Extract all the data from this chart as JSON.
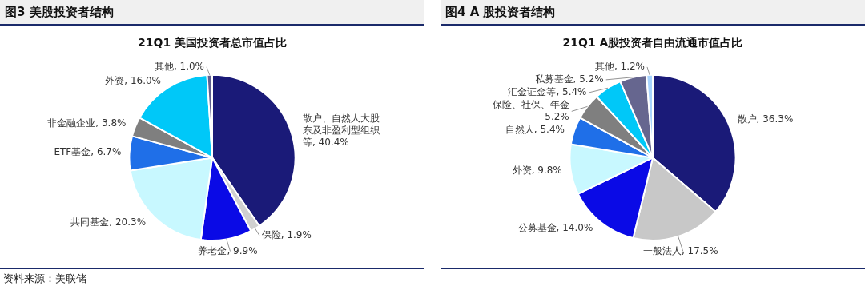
{
  "chart_data": [
    {
      "type": "pie",
      "title": "图3  美股投资者结构",
      "subtitle": "21Q1 美国投资者总市值占比",
      "categories": [
        "散户、自然人大股东及非盈利型组织等",
        "保险",
        "养老金",
        "共同基金",
        "ETF基金",
        "非金融企业",
        "外资",
        "其他"
      ],
      "values": [
        40.4,
        1.9,
        9.9,
        20.3,
        6.7,
        3.8,
        16.0,
        1.0
      ],
      "value_labels": [
        "40.4%",
        "1.9%",
        "9.9%",
        "20.3%",
        "6.7%",
        "3.8%",
        "16.0%",
        "1.0%"
      ],
      "colors": [
        "#1a1a78",
        "#d0d0d0",
        "#0a0ae6",
        "#c8f8ff",
        "#1f6fe8",
        "#7f7f7f",
        "#00c8f8",
        "#5f5f8f"
      ],
      "annotations": [
        "资料来源：美联储"
      ]
    },
    {
      "type": "pie",
      "title": "图4  A 股投资者结构",
      "subtitle": "21Q1 A股投资者自由流通市值占比",
      "categories": [
        "散户",
        "一般法人",
        "公募基金",
        "外资",
        "自然人",
        "保险、社保、年金",
        "汇金证金等",
        "私募基金",
        "其他"
      ],
      "values": [
        36.3,
        17.5,
        14.0,
        9.8,
        5.4,
        5.2,
        5.4,
        5.2,
        1.2
      ],
      "value_labels": [
        "36.3%",
        "17.5%",
        "14.0%",
        "9.8%",
        "5.4%",
        "5.2%",
        "5.4%",
        "5.2%",
        "1.2%"
      ],
      "colors": [
        "#1a1a78",
        "#c8c8c8",
        "#0a0ae6",
        "#c8f8ff",
        "#1f6fe8",
        "#7f7f7f",
        "#00c8f8",
        "#66668f",
        "#a8d4ff"
      ]
    }
  ]
}
